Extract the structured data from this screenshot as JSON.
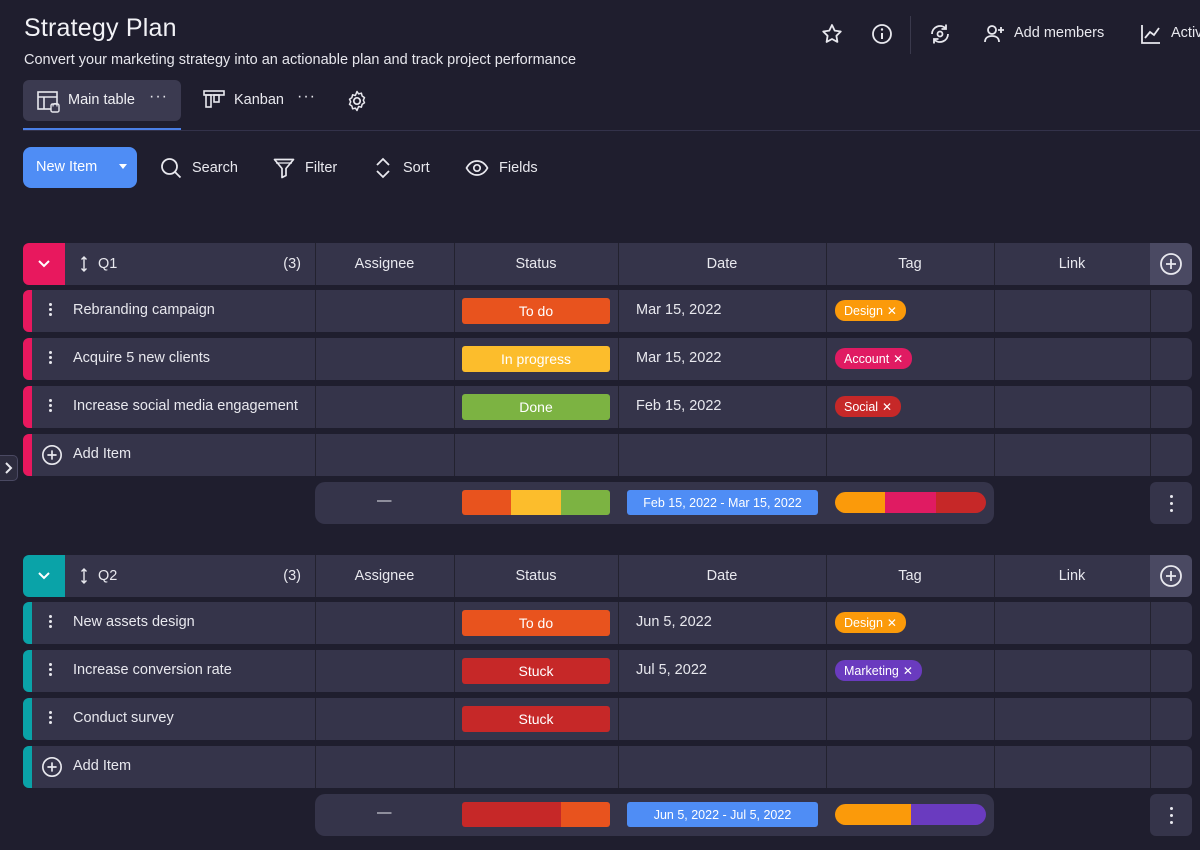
{
  "header": {
    "title": "Strategy Plan",
    "subtitle": "Convert your marketing strategy into an actionable plan and track project performance"
  },
  "top_actions": {
    "favorite_icon": "star-icon",
    "info_icon": "info-icon",
    "sync_icon": "sync-icon",
    "add_members_label": "Add members",
    "activity_label": "Activ"
  },
  "tabs": [
    {
      "label": "Main table",
      "icon": "table-icon",
      "active": true
    },
    {
      "label": "Kanban",
      "icon": "kanban-icon",
      "active": false
    }
  ],
  "toolbar": {
    "new_item_label": "New Item",
    "search_label": "Search",
    "filter_label": "Filter",
    "sort_label": "Sort",
    "fields_label": "Fields"
  },
  "columns": {
    "assignee": "Assignee",
    "status": "Status",
    "date": "Date",
    "tag": "Tag",
    "link": "Link"
  },
  "colors": {
    "accent_blue": "#4f8df5",
    "q1": "#e8185e",
    "q2": "#0aa3a8",
    "todo": "#e8531e",
    "in_progress": "#fcbd2c",
    "done": "#7cb342",
    "stuck": "#c62828",
    "design": "#fb9a0a",
    "account": "#e01b62",
    "social": "#c62828",
    "marketing": "#6a3bbf"
  },
  "groups": [
    {
      "name": "Q1",
      "count": "(3)",
      "items": [
        {
          "name": "Rebranding campaign",
          "status": "To do",
          "date": "Mar 15, 2022",
          "tag": "Design"
        },
        {
          "name": "Acquire 5 new clients",
          "status": "In progress",
          "date": "Mar 15, 2022",
          "tag": "Account"
        },
        {
          "name": "Increase social media engagement",
          "status": "Done",
          "date": "Feb 15, 2022",
          "tag": "Social"
        }
      ],
      "add_item_label": "Add Item",
      "summary": {
        "assignee": "—",
        "date_range": "Feb 15, 2022 - Mar 15, 2022"
      }
    },
    {
      "name": "Q2",
      "count": "(3)",
      "items": [
        {
          "name": "New assets design",
          "status": "To do",
          "date": "Jun 5, 2022",
          "tag": "Design"
        },
        {
          "name": "Increase conversion rate",
          "status": "Stuck",
          "date": "Jul 5, 2022",
          "tag": "Marketing"
        },
        {
          "name": "Conduct survey",
          "status": "Stuck",
          "date": "",
          "tag": ""
        }
      ],
      "add_item_label": "Add Item",
      "summary": {
        "assignee": "—",
        "date_range": "Jun 5, 2022 - Jul 5, 2022"
      }
    }
  ]
}
